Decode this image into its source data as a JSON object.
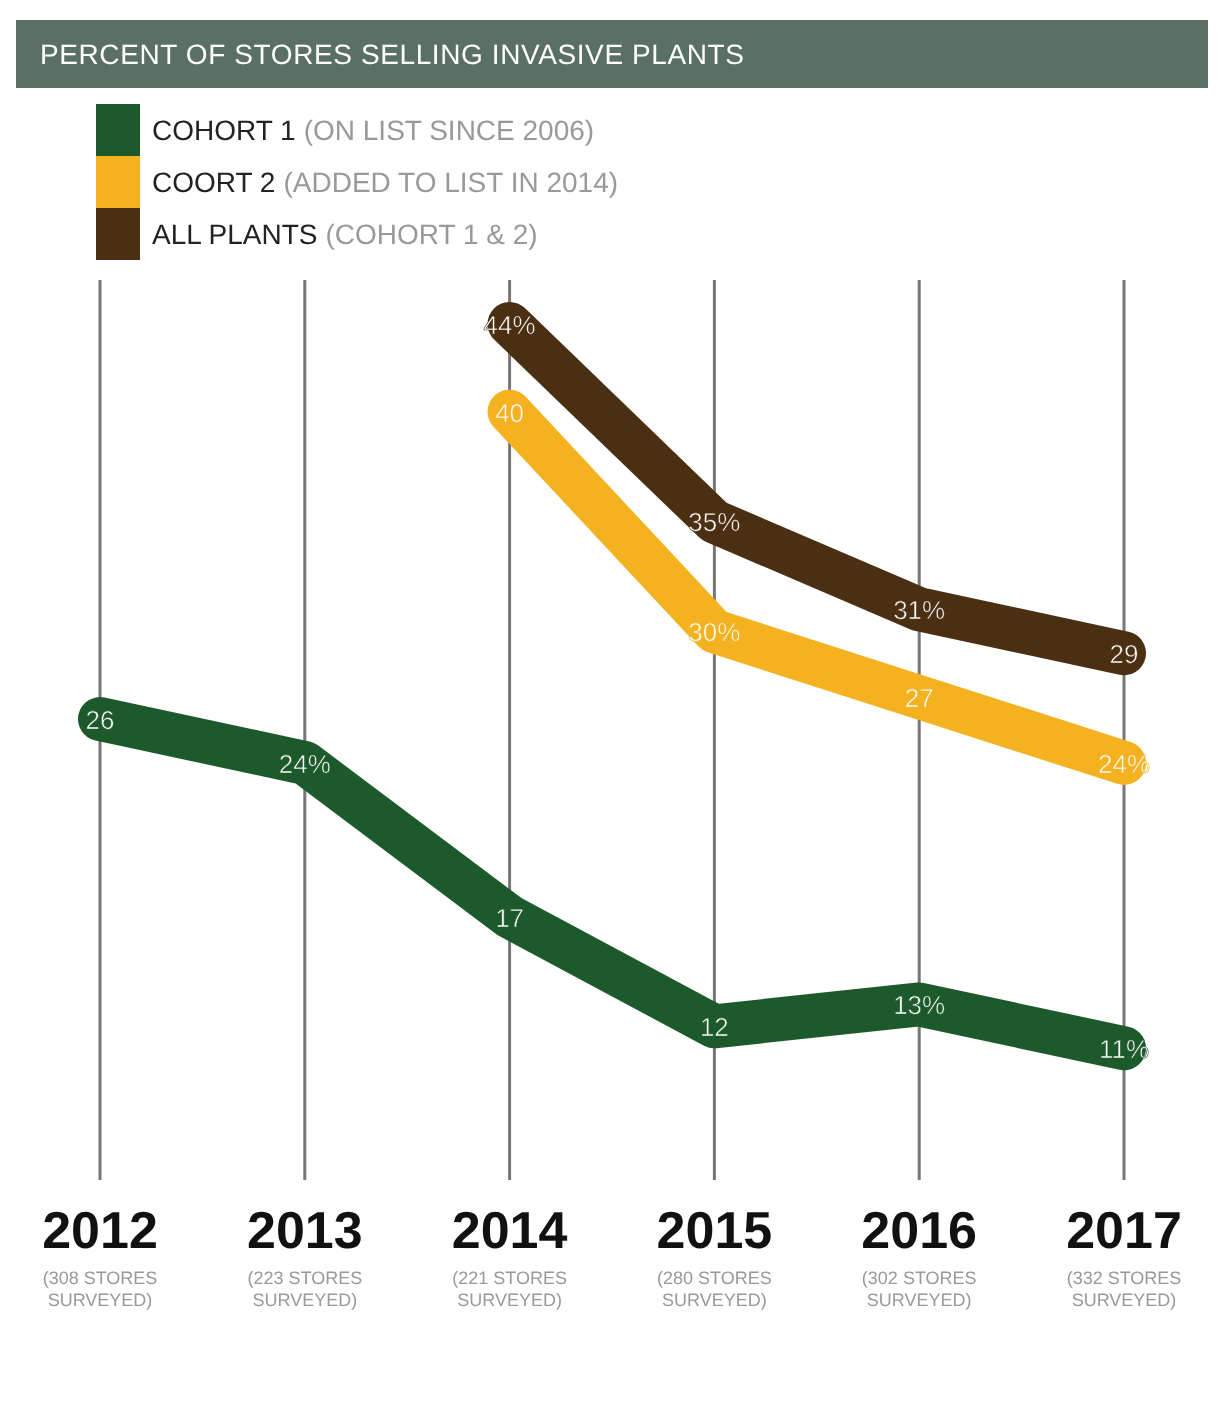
{
  "chart_data": {
    "type": "line",
    "title": "PERCENT OF STORES SELLING INVASIVE PLANTS",
    "categories": [
      "2012\n(308 STORES SURVEYED)",
      "2013\n(223 STORES SURVEYED)",
      "2014\n(221 STORES SURVEYED)",
      "2015\n(280 STORES SURVEYED)",
      "2016\n(302 STORES SURVEYED)",
      "2017\n(332 STORES SURVEYED)"
    ],
    "series": [
      {
        "name": "COHORT 1 (ON LIST SINCE 2006)",
        "color": "#1d5a2b",
        "values": [
          26,
          24,
          17,
          12,
          13,
          11
        ],
        "value_labels": [
          "26",
          "24%",
          "17",
          "12",
          "13%",
          "11%"
        ]
      },
      {
        "name": "COORT 2 (ADDED TO LIST IN 2014)",
        "color": "#f4b120",
        "values": [
          null,
          null,
          40,
          30,
          27,
          24
        ],
        "value_labels": [
          null,
          null,
          "40",
          "30%",
          "27",
          "24%"
        ]
      },
      {
        "name": "ALL PLANTS (COHORT 1 & 2)",
        "color": "#4a2f12",
        "values": [
          null,
          null,
          44,
          35,
          31,
          29
        ],
        "value_labels": [
          null,
          null,
          "44%",
          "35%",
          "31%",
          "29"
        ]
      }
    ],
    "ylim": [
      5,
      46
    ],
    "tick_labels": "x",
    "grid": "x",
    "legend": "top left",
    "marker": "none",
    "line_style": "solid"
  }
}
